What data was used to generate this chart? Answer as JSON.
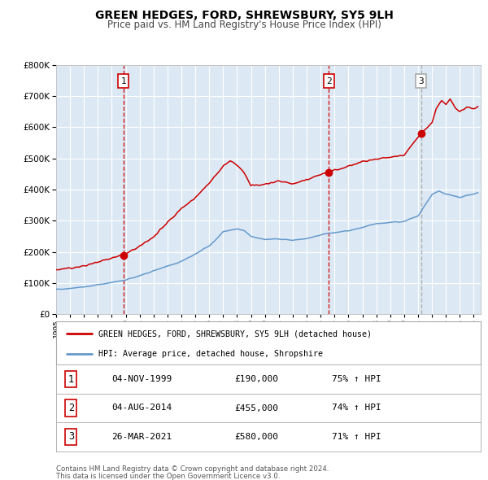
{
  "title": "GREEN HEDGES, FORD, SHREWSBURY, SY5 9LH",
  "subtitle": "Price paid vs. HM Land Registry's House Price Index (HPI)",
  "legend_line1": "GREEN HEDGES, FORD, SHREWSBURY, SY5 9LH (detached house)",
  "legend_line2": "HPI: Average price, detached house, Shropshire",
  "footer1": "Contains HM Land Registry data © Crown copyright and database right 2024.",
  "footer2": "This data is licensed under the Open Government Licence v3.0.",
  "sale_color": "#cc0000",
  "hpi_color": "#6699cc",
  "background_color": "#dce9f5",
  "grid_color": "#ffffff",
  "vline_color": "#cc0000",
  "vline3_color": "#aaaaaa",
  "ylim": [
    0,
    800000
  ],
  "xlim_start": 1995.0,
  "xlim_end": 2025.5,
  "sales": [
    {
      "date": 1999.84,
      "price": 190000,
      "label": "1",
      "pct": "75%",
      "date_str": "04-NOV-1999"
    },
    {
      "date": 2014.59,
      "price": 455000,
      "label": "2",
      "pct": "74%",
      "date_str": "04-AUG-2014"
    },
    {
      "date": 2021.23,
      "price": 580000,
      "label": "3",
      "pct": "71%",
      "date_str": "26-MAR-2021"
    }
  ]
}
